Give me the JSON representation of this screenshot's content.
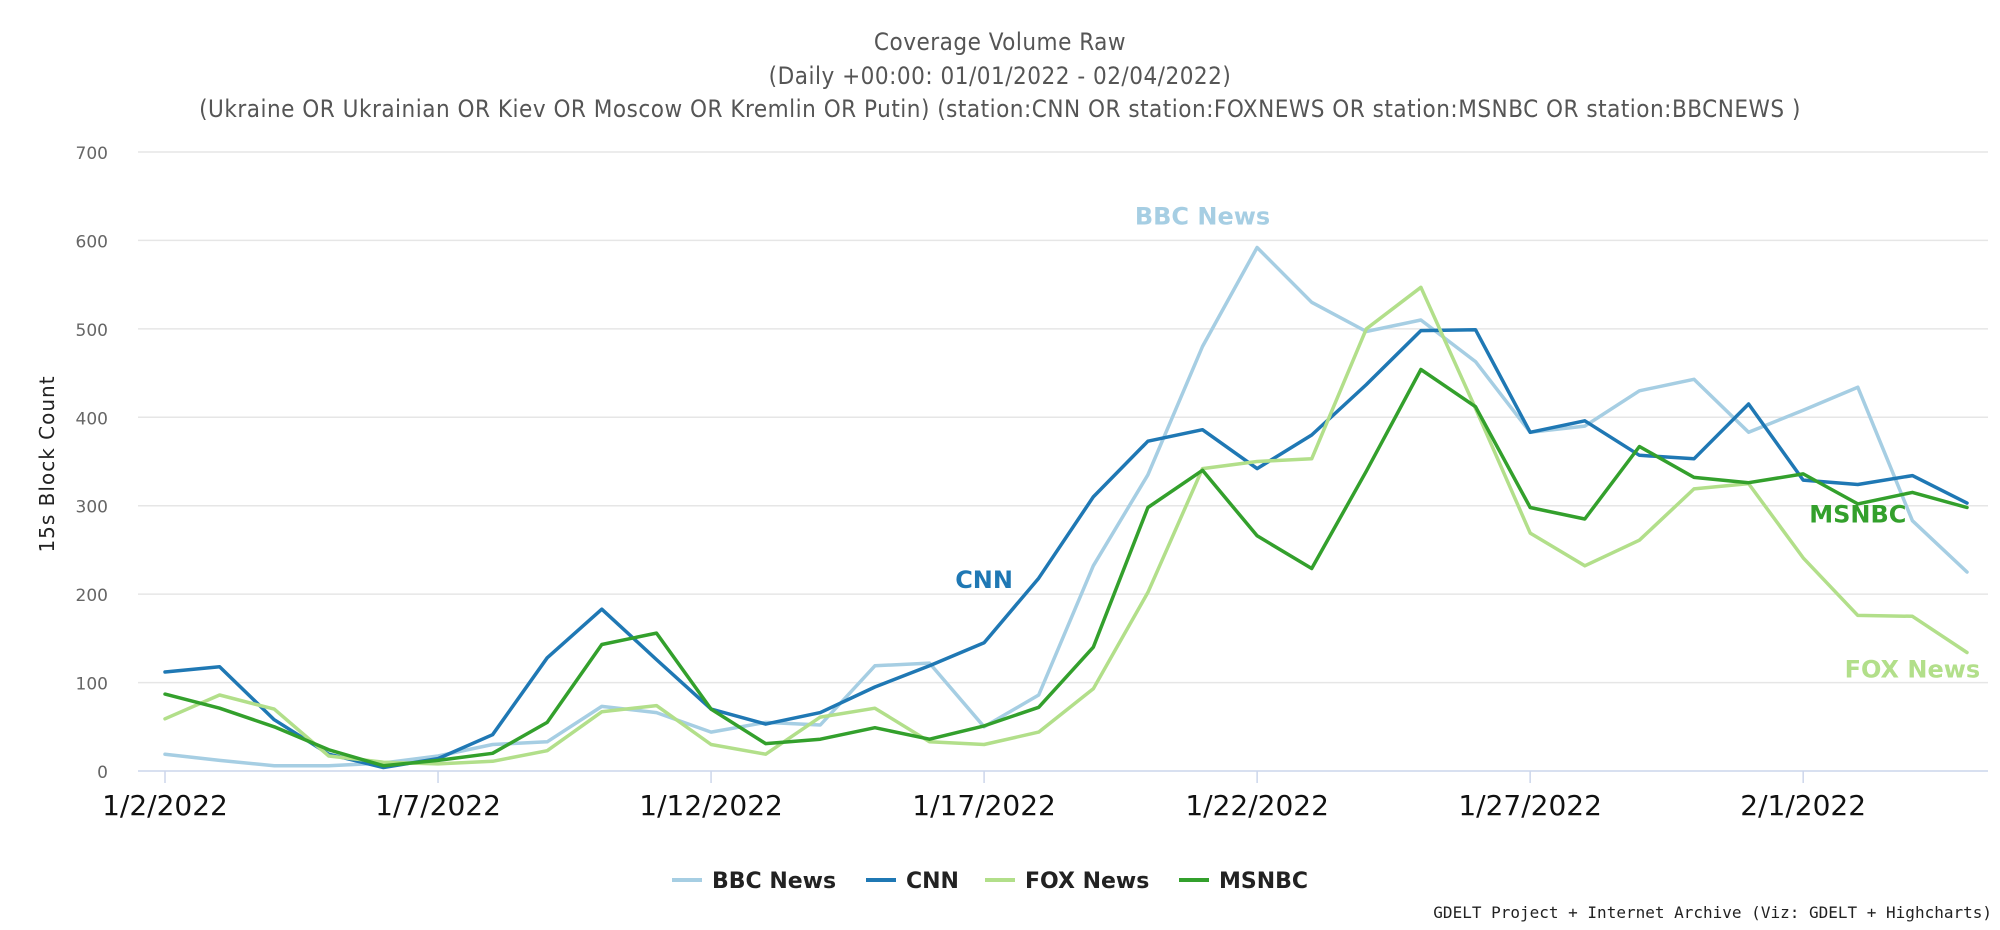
{
  "chart_data": {
    "type": "line",
    "title": "Coverage Volume Raw",
    "subtitle_lines": [
      "(Daily +00:00: 01/01/2022 - 02/04/2022)",
      "(Ukraine OR Ukrainian OR Kiev OR Moscow OR Kremlin OR Putin) (station:CNN OR station:FOXNEWS OR station:MSNBC OR station:BBCNEWS )"
    ],
    "xlabel": "",
    "ylabel": "15s Block Count",
    "ylim": [
      0,
      700
    ],
    "yticks": [
      0,
      100,
      200,
      300,
      400,
      500,
      600,
      700
    ],
    "x": [
      "2022-01-02",
      "2022-01-03",
      "2022-01-04",
      "2022-01-05",
      "2022-01-06",
      "2022-01-07",
      "2022-01-08",
      "2022-01-09",
      "2022-01-10",
      "2022-01-11",
      "2022-01-12",
      "2022-01-13",
      "2022-01-14",
      "2022-01-15",
      "2022-01-16",
      "2022-01-17",
      "2022-01-18",
      "2022-01-19",
      "2022-01-20",
      "2022-01-21",
      "2022-01-22",
      "2022-01-23",
      "2022-01-24",
      "2022-01-25",
      "2022-01-26",
      "2022-01-27",
      "2022-01-28",
      "2022-01-29",
      "2022-01-30",
      "2022-01-31",
      "2022-02-01",
      "2022-02-02",
      "2022-02-03",
      "2022-02-04"
    ],
    "xtick_labels": [
      {
        "date": "2022-01-02",
        "label": "1/2/2022"
      },
      {
        "date": "2022-01-07",
        "label": "1/7/2022"
      },
      {
        "date": "2022-01-12",
        "label": "1/12/2022"
      },
      {
        "date": "2022-01-17",
        "label": "1/17/2022"
      },
      {
        "date": "2022-01-22",
        "label": "1/22/2022"
      },
      {
        "date": "2022-01-27",
        "label": "1/27/2022"
      },
      {
        "date": "2022-02-01",
        "label": "2/1/2022"
      }
    ],
    "grid": true,
    "legend_position": "bottom-center",
    "series": [
      {
        "name": "BBC News",
        "color": "#a6cee3",
        "values": [
          19,
          12,
          6,
          6,
          9,
          17,
          30,
          33,
          73,
          66,
          44,
          55,
          52,
          119,
          122,
          50,
          86,
          232,
          335,
          480,
          592,
          530,
          497,
          510,
          463,
          383,
          390,
          430,
          443,
          383,
          408,
          434,
          283,
          225
        ]
      },
      {
        "name": "CNN",
        "color": "#1f78b4",
        "values": [
          112,
          118,
          58,
          19,
          4,
          14,
          41,
          128,
          183,
          126,
          70,
          53,
          66,
          95,
          119,
          145,
          218,
          310,
          373,
          386,
          342,
          380,
          437,
          498,
          499,
          383,
          396,
          357,
          353,
          415,
          329,
          324,
          334,
          303
        ]
      },
      {
        "name": "FOX News",
        "color": "#b2df8a",
        "values": [
          59,
          86,
          70,
          17,
          10,
          8,
          11,
          23,
          67,
          74,
          30,
          19,
          61,
          71,
          33,
          30,
          44,
          93,
          202,
          342,
          350,
          353,
          500,
          547,
          410,
          269,
          232,
          261,
          319,
          325,
          241,
          176,
          175,
          134
        ]
      },
      {
        "name": "MSNBC",
        "color": "#33a02c",
        "values": [
          87,
          71,
          50,
          24,
          6,
          12,
          20,
          55,
          143,
          156,
          70,
          31,
          36,
          49,
          36,
          51,
          72,
          140,
          298,
          340,
          266,
          229,
          339,
          454,
          412,
          298,
          285,
          367,
          332,
          326,
          336,
          302,
          315,
          298
        ]
      }
    ],
    "series_annotations": [
      {
        "series": "BBC News",
        "label": "BBC News",
        "date": "2022-01-21",
        "value": 618
      },
      {
        "series": "CNN",
        "label": "CNN",
        "date": "2022-01-17",
        "value": 207
      },
      {
        "series": "MSNBC",
        "label": "MSNBC",
        "date": "2022-02-02",
        "value": 281
      },
      {
        "series": "FOX News",
        "label": "FOX News",
        "date": "2022-02-03",
        "value": 106
      }
    ],
    "credits": "GDELT Project + Internet Archive (Viz: GDELT + Highcharts)"
  }
}
